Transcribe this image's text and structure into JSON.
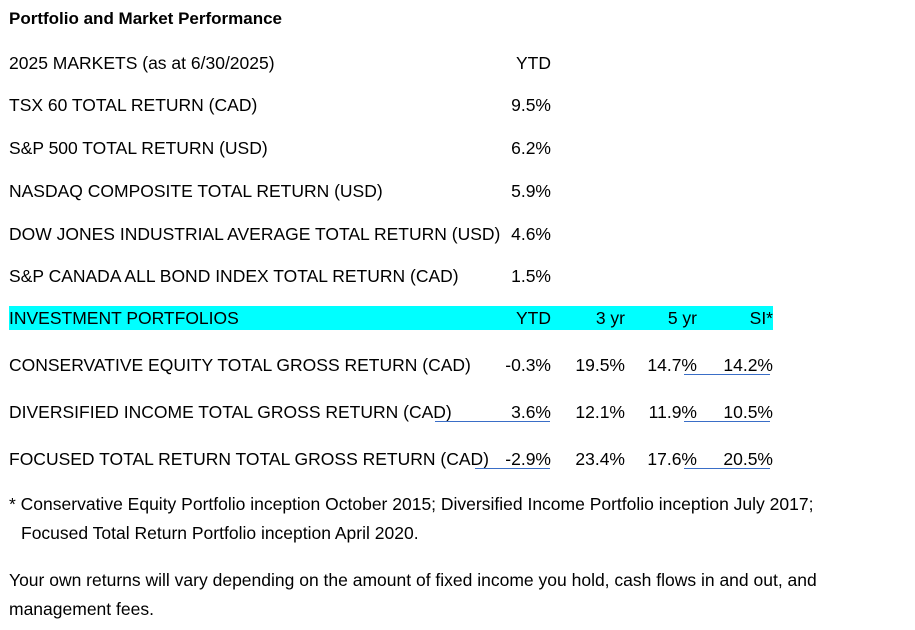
{
  "title": "Portfolio and Market Performance",
  "markets": {
    "header": {
      "label": "2025 MARKETS (as at 6/30/2025)",
      "ytd": "YTD"
    },
    "rows": [
      {
        "label": "TSX 60 TOTAL RETURN (CAD)",
        "ytd": "9.5%"
      },
      {
        "label": "S&P 500 TOTAL RETURN (USD)",
        "ytd": "6.2%"
      },
      {
        "label": "NASDAQ COMPOSITE TOTAL RETURN (USD)",
        "ytd": "5.9%"
      },
      {
        "label": "DOW JONES INDUSTRIAL AVERAGE TOTAL RETURN (USD)",
        "ytd": "4.6%"
      },
      {
        "label": "S&P CANADA ALL BOND INDEX TOTAL RETURN (CAD)",
        "ytd": "1.5%"
      }
    ]
  },
  "portfolios": {
    "header": {
      "label": "INVESTMENT PORTFOLIOS",
      "ytd": "YTD",
      "yr3": "3 yr",
      "yr5": "5 yr",
      "si": "SI*"
    },
    "highlight_color": "#00ffff",
    "rows": [
      {
        "label": "CONSERVATIVE EQUITY TOTAL GROSS RETURN (CAD)",
        "ytd": "-0.3%",
        "yr3": "19.5%",
        "yr5": "14.7%",
        "si": "14.2%"
      },
      {
        "label": "DIVERSIFIED INCOME TOTAL GROSS RETURN (CAD)",
        "ytd": "3.6%",
        "yr3": "12.1%",
        "yr5": "11.9%",
        "si": "10.5%"
      },
      {
        "label": "FOCUSED TOTAL RETURN TOTAL GROSS RETURN (CAD)",
        "ytd": "-2.9%",
        "yr3": "23.4%",
        "yr5": "17.6%",
        "si": "20.5%"
      }
    ]
  },
  "footnote": {
    "line1": "* Conservative Equity Portfolio inception October 2015; Diversified Income Portfolio inception July 2017;",
    "line2": "Focused Total Return Portfolio inception April 2020."
  },
  "disclaimer": {
    "line1": "Your own returns will vary depending on the amount of fixed income you hold, cash flows in and out, and",
    "line2": "management fees."
  }
}
